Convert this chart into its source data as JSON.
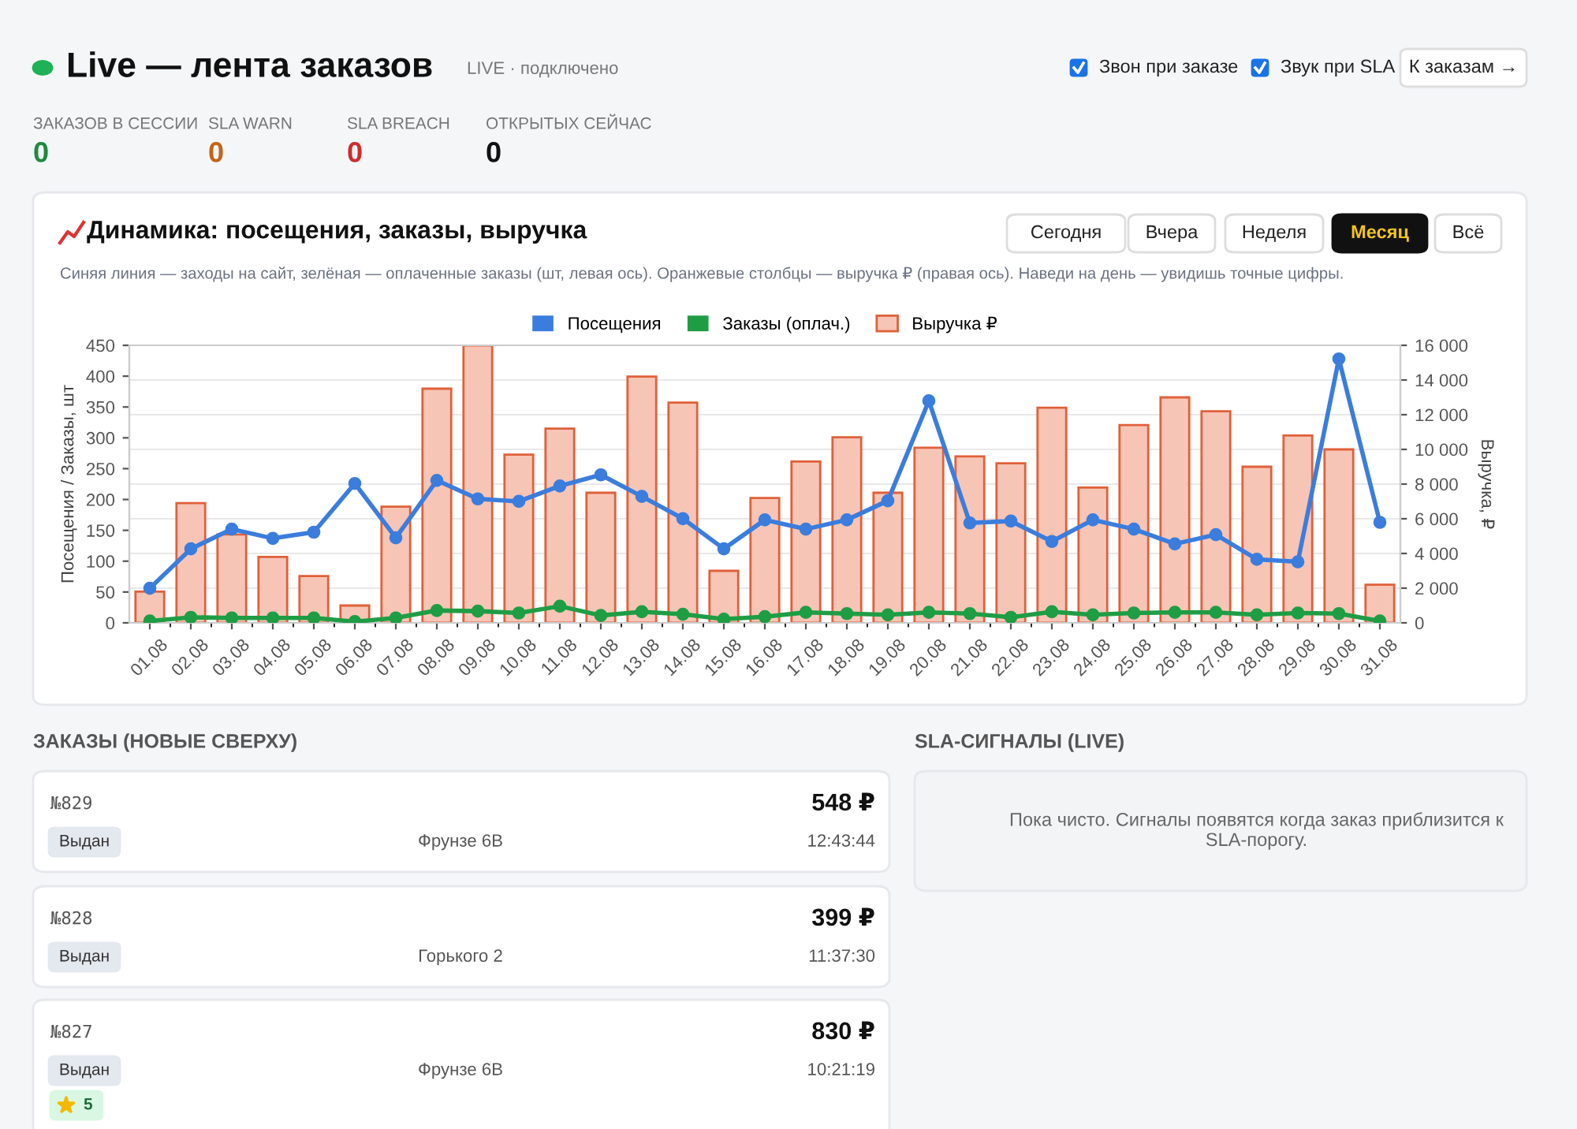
{
  "chart_data": [
    {
      "type": "other",
      "title": "Live — лента заказов",
      "subtitle": "LIVE · подключено",
      "annotations": [
        "Звон при заказе",
        "Звук при SLA",
        "К заказам →",
        "ЗАКАЗОВ В СЕССИИ",
        "0",
        "SLA WARN",
        "0",
        "SLA BREACH",
        "0",
        "ОТКРЫТЫХ СЕЙЧАС",
        "0"
      ]
    },
    {
      "type": "bar",
      "title": "Динамика: посещения, заказы, выручка",
      "subtitle": "Синяя линия — заходы на сайт, зелёная — оплаченные заказы (шт, левая ось). Оранжевые столбцы — выручка ₽ (правая ось). Наведи на день — увидишь точные цифры.",
      "annotations": [
        "Сегодня",
        "Вчера",
        "Неделя",
        "Месяц",
        "Всё"
      ],
      "categories": [
        "01.08",
        "02.08",
        "03.08",
        "04.08",
        "05.08",
        "06.08",
        "07.08",
        "08.08",
        "09.08",
        "10.08",
        "11.08",
        "12.08",
        "13.08",
        "14.08",
        "15.08",
        "16.08",
        "17.08",
        "18.08",
        "19.08",
        "20.08",
        "21.08",
        "22.08",
        "23.08",
        "24.08",
        "25.08",
        "26.08",
        "27.08",
        "28.08",
        "29.08",
        "30.08",
        "31.08"
      ],
      "series": [
        {
          "name": "Посещения",
          "type": "line",
          "color": "#3b7ddd",
          "values": [
            56,
            120,
            152,
            137,
            147,
            226,
            138,
            231,
            201,
            197,
            222,
            240,
            205,
            169,
            120,
            167,
            152,
            167,
            198,
            360,
            162,
            165,
            132,
            167,
            152,
            128,
            143,
            103,
            99,
            428,
            163
          ]
        },
        {
          "name": "Заказы (оплач.)",
          "type": "line",
          "color": "#1f9d45",
          "values": [
            3,
            9,
            8,
            8,
            8,
            2,
            8,
            20,
            19,
            16,
            27,
            12,
            18,
            14,
            6,
            10,
            17,
            15,
            13,
            17,
            15,
            9,
            18,
            13,
            16,
            17,
            17,
            13,
            16,
            15,
            3
          ]
        },
        {
          "name": "Выручка ₽",
          "type": "bar",
          "axis": "y2",
          "color": "#f7c5b5",
          "values": [
            1800,
            6900,
            5100,
            3800,
            2700,
            1000,
            6700,
            13500,
            16000,
            9700,
            11200,
            7500,
            14200,
            12700,
            3000,
            7200,
            9300,
            10700,
            7500,
            10100,
            9600,
            9200,
            12400,
            7800,
            11400,
            13000,
            12200,
            9000,
            10800,
            10000,
            2200
          ]
        }
      ],
      "ylabel": "Посещения / Заказы, шт",
      "y2label": "Выручка, ₽",
      "ylim": [
        0,
        450
      ],
      "yticks": [
        0,
        50,
        100,
        150,
        200,
        250,
        300,
        350,
        400,
        450
      ],
      "y2lim": [
        0,
        16000
      ],
      "y2ticks": [
        0,
        {
          "value": 2000,
          "label": "2 000"
        },
        {
          "value": 4000,
          "label": "4 000"
        },
        {
          "value": 6000,
          "label": "6 000"
        },
        {
          "value": 8000,
          "label": "8 000"
        },
        {
          "value": 10000,
          "label": "10 000"
        },
        {
          "value": 12000,
          "label": "12 000"
        },
        {
          "value": 14000,
          "label": "14 000"
        },
        {
          "value": 16000,
          "label": "16 000"
        }
      ],
      "grid": true,
      "legend": "top",
      "marker": "circle",
      "line_style": "solid"
    },
    {
      "type": "other",
      "title": "ЗАКАЗЫ (НОВЫЕ СВЕРХУ)",
      "annotations": [
        "№829",
        "548 ₽",
        "Выдан",
        "Фрунзе 6В",
        "12:43:44",
        "№828",
        "399 ₽",
        "Выдан",
        "Горького 2",
        "11:37:30",
        "№827",
        "830 ₽",
        "Выдан",
        "Фрунзе 6В",
        "10:21:19",
        "5"
      ]
    },
    {
      "type": "other",
      "title": "SLA-СИГНАЛЫ (LIVE)",
      "annotations": [
        "Пока чисто. Сигналы появятся когда заказ приблизится к SLA-порогу."
      ]
    }
  ]
}
